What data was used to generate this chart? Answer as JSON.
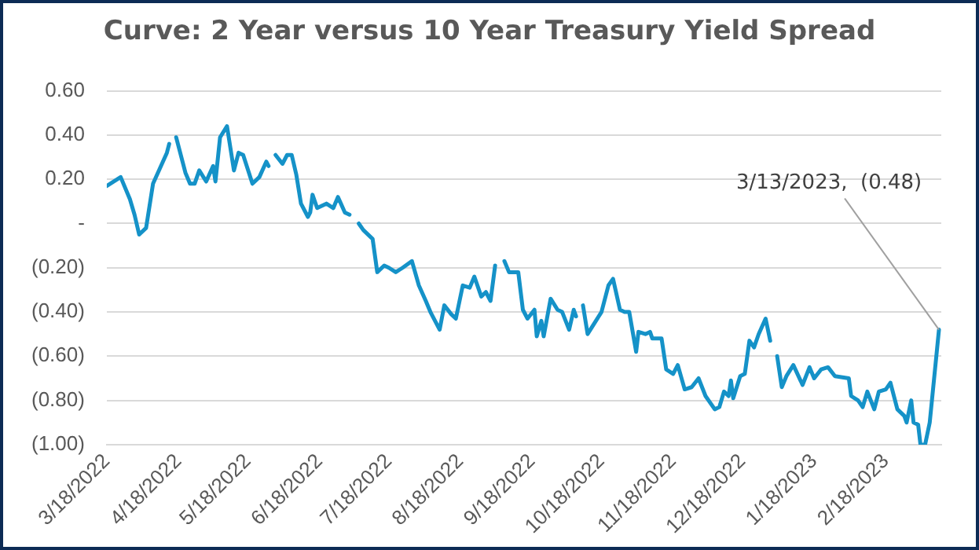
{
  "chart_data": {
    "type": "line",
    "title": "Curve: 2 Year versus 10 Year Treasury Yield Spread",
    "x": [
      "2022-03-18",
      "2022-03-24",
      "2022-03-28",
      "2022-03-30",
      "2022-04-01",
      "2022-04-04",
      "2022-04-07",
      "2022-04-13",
      "2022-04-14",
      "2022-04-15",
      "2022-04-17",
      "2022-04-21",
      "2022-04-23",
      "2022-04-25",
      "2022-04-27",
      "2022-04-30",
      "2022-05-03",
      "2022-05-04",
      "2022-05-06",
      "2022-05-09",
      "2022-05-12",
      "2022-05-14",
      "2022-05-16",
      "2022-05-20",
      "2022-05-23",
      "2022-05-26",
      "2022-05-27",
      "2022-05-28",
      "2022-05-30",
      "2022-06-02",
      "2022-06-04",
      "2022-06-06",
      "2022-06-08",
      "2022-06-10",
      "2022-06-13",
      "2022-06-14",
      "2022-06-15",
      "2022-06-17",
      "2022-06-21",
      "2022-06-24",
      "2022-06-26",
      "2022-06-29",
      "2022-07-01",
      "2022-07-03",
      "2022-07-05",
      "2022-07-07",
      "2022-07-11",
      "2022-07-13",
      "2022-07-16",
      "2022-07-18",
      "2022-07-21",
      "2022-07-24",
      "2022-07-28",
      "2022-07-31",
      "2022-08-03",
      "2022-08-05",
      "2022-08-09",
      "2022-08-11",
      "2022-08-14",
      "2022-08-16",
      "2022-08-19",
      "2022-08-22",
      "2022-08-24",
      "2022-08-27",
      "2022-08-29",
      "2022-08-31",
      "2022-09-02",
      "2022-09-04",
      "2022-09-06",
      "2022-09-08",
      "2022-09-12",
      "2022-09-14",
      "2022-09-16",
      "2022-09-19",
      "2022-09-20",
      "2022-09-22",
      "2022-09-23",
      "2022-09-26",
      "2022-09-29",
      "2022-10-01",
      "2022-10-04",
      "2022-10-06",
      "2022-10-07",
      "2022-10-08",
      "2022-10-10",
      "2022-10-12",
      "2022-10-15",
      "2022-10-18",
      "2022-10-21",
      "2022-10-23",
      "2022-10-26",
      "2022-10-28",
      "2022-10-30",
      "2022-11-02",
      "2022-11-03",
      "2022-11-06",
      "2022-11-08",
      "2022-11-09",
      "2022-11-13",
      "2022-11-15",
      "2022-11-18",
      "2022-11-20",
      "2022-11-23",
      "2022-11-26",
      "2022-11-29",
      "2022-12-02",
      "2022-12-06",
      "2022-12-08",
      "2022-12-10",
      "2022-12-12",
      "2022-12-13",
      "2022-12-14",
      "2022-12-17",
      "2022-12-19",
      "2022-12-21",
      "2022-12-23",
      "2022-12-25",
      "2022-12-28",
      "2022-12-30",
      "2022-12-31",
      "2023-01-02",
      "2023-01-04",
      "2023-01-06",
      "2023-01-09",
      "2023-01-13",
      "2023-01-16",
      "2023-01-18",
      "2023-01-21",
      "2023-01-24",
      "2023-01-27",
      "2023-02-02",
      "2023-02-03",
      "2023-02-06",
      "2023-02-08",
      "2023-02-10",
      "2023-02-13",
      "2023-02-15",
      "2023-02-18",
      "2023-02-20",
      "2023-02-23",
      "2023-02-26",
      "2023-02-27",
      "2023-03-01",
      "2023-03-02",
      "2023-03-04",
      "2023-03-05",
      "2023-03-07",
      "2023-03-09",
      "2023-03-13"
    ],
    "series": [
      {
        "color": "#1592c8",
        "values": [
          0.17,
          0.21,
          0.11,
          0.04,
          -0.05,
          -0.02,
          0.18,
          0.32,
          0.36,
          null,
          0.39,
          0.23,
          0.18,
          0.18,
          0.24,
          0.19,
          0.26,
          0.19,
          0.39,
          0.44,
          0.24,
          0.32,
          0.31,
          0.18,
          0.21,
          0.28,
          0.26,
          null,
          0.31,
          0.27,
          0.31,
          0.31,
          0.22,
          0.09,
          0.03,
          0.05,
          0.13,
          0.07,
          0.09,
          0.07,
          0.12,
          0.05,
          0.04,
          null,
          0.0,
          -0.03,
          -0.07,
          -0.22,
          -0.19,
          -0.2,
          -0.22,
          -0.2,
          -0.17,
          -0.28,
          -0.35,
          -0.4,
          -0.48,
          -0.37,
          -0.41,
          -0.43,
          -0.28,
          -0.29,
          -0.24,
          -0.33,
          -0.31,
          -0.35,
          -0.19,
          null,
          -0.17,
          -0.22,
          -0.22,
          -0.39,
          -0.43,
          -0.39,
          -0.51,
          -0.44,
          -0.51,
          -0.34,
          -0.39,
          -0.4,
          -0.48,
          -0.39,
          -0.42,
          null,
          -0.37,
          -0.5,
          -0.45,
          -0.4,
          -0.28,
          -0.25,
          -0.39,
          -0.4,
          -0.4,
          -0.58,
          -0.49,
          -0.5,
          -0.49,
          -0.52,
          -0.52,
          -0.66,
          -0.68,
          -0.64,
          -0.75,
          -0.74,
          -0.7,
          -0.78,
          -0.84,
          -0.83,
          -0.76,
          -0.78,
          -0.71,
          -0.79,
          -0.69,
          -0.68,
          -0.53,
          -0.56,
          -0.5,
          -0.43,
          -0.53,
          null,
          -0.6,
          -0.74,
          -0.69,
          -0.64,
          -0.73,
          -0.65,
          -0.7,
          -0.66,
          -0.65,
          -0.69,
          -0.7,
          -0.78,
          -0.8,
          -0.83,
          -0.76,
          -0.84,
          -0.76,
          -0.75,
          -0.72,
          -0.84,
          -0.87,
          -0.9,
          -0.8,
          -0.9,
          -0.91,
          -1.0,
          -1.0,
          -0.9,
          -0.48
        ]
      }
    ],
    "xlim": [
      "2022-03-18",
      "2023-03-14"
    ],
    "xticks": [
      {
        "value": "2022-03-18",
        "label": "3/18/2022"
      },
      {
        "value": "2022-04-18",
        "label": "4/18/2022"
      },
      {
        "value": "2022-05-18",
        "label": "5/18/2022"
      },
      {
        "value": "2022-06-18",
        "label": "6/18/2022"
      },
      {
        "value": "2022-07-18",
        "label": "7/18/2022"
      },
      {
        "value": "2022-08-18",
        "label": "8/18/2022"
      },
      {
        "value": "2022-09-18",
        "label": "9/18/2022"
      },
      {
        "value": "2022-10-18",
        "label": "10/18/2022"
      },
      {
        "value": "2022-11-18",
        "label": "11/18/2022"
      },
      {
        "value": "2022-12-18",
        "label": "12/18/2022"
      },
      {
        "value": "2023-01-18",
        "label": "1/18/2023"
      },
      {
        "value": "2023-02-18",
        "label": "2/18/2023"
      }
    ],
    "ylim": [
      -1.0,
      0.6
    ],
    "yticks": [
      {
        "value": 0.6,
        "label": "0.60"
      },
      {
        "value": 0.4,
        "label": "0.40"
      },
      {
        "value": 0.2,
        "label": "0.20"
      },
      {
        "value": 0,
        "label": "-"
      },
      {
        "value": -0.2,
        "label": "(0.20)"
      },
      {
        "value": -0.4,
        "label": "(0.40)"
      },
      {
        "value": -0.6,
        "label": "(0.60)"
      },
      {
        "value": -0.8,
        "label": "(0.80)"
      },
      {
        "value": -1.0,
        "label": "(1.00)"
      }
    ],
    "grid": "y",
    "legend": false,
    "marker": "none",
    "line_style": "solid",
    "annotations": [
      {
        "text": "3/13/2023,  (0.48)",
        "x": "2023-03-13",
        "y": -0.48
      }
    ]
  }
}
